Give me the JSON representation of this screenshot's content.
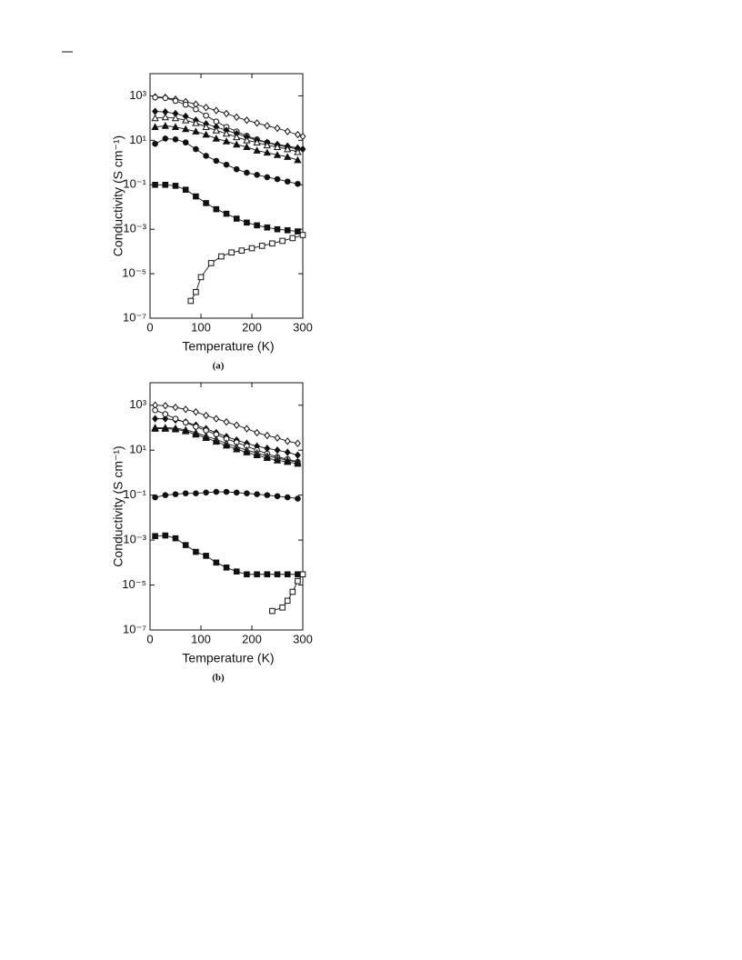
{
  "chart_data": [
    {
      "type": "line",
      "caption": "(a)",
      "xlabel": "Temperature (K)",
      "ylabel": "Conductivity (S cm⁻¹)",
      "log_y": true,
      "xlim": [
        0,
        300
      ],
      "xticks": [
        0,
        100,
        200,
        300
      ],
      "ylim": [
        1e-07,
        10000
      ],
      "yticks": [
        {
          "value": 1000,
          "label": "10³"
        },
        {
          "value": 10,
          "label": "10¹"
        },
        {
          "value": 0.1,
          "label": "10⁻¹"
        },
        {
          "value": 0.001,
          "label": "10⁻³"
        },
        {
          "value": 1e-05,
          "label": "10⁻⁵"
        },
        {
          "value": 1e-07,
          "label": "10⁻⁷"
        }
      ],
      "series": [
        {
          "marker": "diamond",
          "filled": false,
          "color": "#111",
          "x": [
            10,
            30,
            50,
            70,
            90,
            110,
            130,
            150,
            170,
            190,
            210,
            230,
            250,
            270,
            290,
            300
          ],
          "values": [
            900,
            850,
            700,
            550,
            420,
            300,
            220,
            160,
            110,
            80,
            60,
            45,
            35,
            25,
            18,
            15
          ]
        },
        {
          "marker": "circle",
          "filled": false,
          "color": "#111",
          "x": [
            10,
            30,
            50,
            70,
            90,
            110,
            130,
            150,
            170,
            190,
            210,
            230,
            250,
            270,
            290
          ],
          "values": [
            850,
            800,
            600,
            400,
            250,
            130,
            70,
            40,
            25,
            16,
            11,
            8,
            6,
            5,
            4
          ]
        },
        {
          "marker": "diamond",
          "filled": true,
          "color": "#111",
          "x": [
            10,
            30,
            50,
            70,
            90,
            110,
            130,
            150,
            170,
            190,
            210,
            230,
            250,
            270,
            290,
            300
          ],
          "values": [
            200,
            190,
            160,
            120,
            80,
            55,
            40,
            28,
            20,
            14,
            10,
            8,
            6.5,
            5.5,
            4.5,
            4
          ]
        },
        {
          "marker": "triangle",
          "filled": false,
          "color": "#111",
          "x": [
            10,
            30,
            50,
            70,
            90,
            110,
            130,
            150,
            170,
            190,
            210,
            230,
            250,
            270,
            290
          ],
          "values": [
            100,
            110,
            100,
            80,
            60,
            40,
            28,
            20,
            14,
            10,
            8,
            6,
            5,
            4,
            3
          ]
        },
        {
          "marker": "triangle",
          "filled": true,
          "color": "#111",
          "x": [
            10,
            30,
            50,
            70,
            90,
            110,
            130,
            150,
            170,
            190,
            210,
            230,
            250,
            270,
            290
          ],
          "values": [
            40,
            45,
            40,
            32,
            25,
            18,
            12,
            9,
            6.5,
            5,
            3.5,
            2.8,
            2.2,
            1.8,
            1.3
          ]
        },
        {
          "marker": "circle",
          "filled": true,
          "color": "#111",
          "x": [
            10,
            30,
            50,
            70,
            90,
            110,
            130,
            150,
            170,
            190,
            210,
            230,
            250,
            270,
            290
          ],
          "values": [
            7,
            12,
            11,
            8,
            4,
            2,
            1.2,
            0.8,
            0.5,
            0.35,
            0.28,
            0.22,
            0.18,
            0.14,
            0.11
          ]
        },
        {
          "marker": "square",
          "filled": true,
          "color": "#111",
          "x": [
            10,
            30,
            50,
            70,
            90,
            110,
            130,
            150,
            170,
            190,
            210,
            230,
            250,
            270,
            290
          ],
          "values": [
            0.1,
            0.1,
            0.09,
            0.06,
            0.03,
            0.015,
            0.008,
            0.005,
            0.003,
            0.002,
            0.0015,
            0.0012,
            0.001,
            0.0009,
            0.0008
          ]
        },
        {
          "marker": "square",
          "filled": false,
          "color": "#111",
          "x": [
            80,
            90,
            100,
            120,
            140,
            160,
            180,
            200,
            220,
            240,
            260,
            280,
            300
          ],
          "values": [
            6e-07,
            1.5e-06,
            7e-06,
            3e-05,
            6e-05,
            9e-05,
            0.00011,
            0.00014,
            0.00018,
            0.00023,
            0.0003,
            0.0004,
            0.00055
          ]
        }
      ]
    },
    {
      "type": "line",
      "caption": "(b)",
      "xlabel": "Temperature (K)",
      "ylabel": "Conductivity (S cm⁻¹)",
      "log_y": true,
      "xlim": [
        0,
        300
      ],
      "xticks": [
        0,
        100,
        200,
        300
      ],
      "ylim": [
        1e-07,
        10000
      ],
      "yticks": [
        {
          "value": 1000,
          "label": "10³"
        },
        {
          "value": 10,
          "label": "10¹"
        },
        {
          "value": 0.1,
          "label": "10⁻¹"
        },
        {
          "value": 0.001,
          "label": "10⁻³"
        },
        {
          "value": 1e-05,
          "label": "10⁻⁵"
        },
        {
          "value": 1e-07,
          "label": "10⁻⁷"
        }
      ],
      "series": [
        {
          "marker": "diamond",
          "filled": false,
          "color": "#111",
          "x": [
            10,
            30,
            50,
            70,
            90,
            110,
            130,
            150,
            170,
            190,
            210,
            230,
            250,
            270,
            290
          ],
          "values": [
            1000,
            950,
            800,
            650,
            500,
            350,
            250,
            180,
            130,
            90,
            60,
            45,
            35,
            25,
            20
          ]
        },
        {
          "marker": "diamond",
          "filled": true,
          "color": "#111",
          "x": [
            10,
            30,
            50,
            70,
            90,
            110,
            130,
            150,
            170,
            190,
            210,
            230,
            250,
            270,
            290
          ],
          "values": [
            250,
            250,
            220,
            180,
            130,
            90,
            60,
            40,
            28,
            20,
            15,
            12,
            10,
            8,
            6
          ]
        },
        {
          "marker": "circle",
          "filled": false,
          "color": "#111",
          "x": [
            10,
            30,
            50,
            70,
            90,
            110,
            130,
            150,
            170,
            190,
            210,
            230,
            250,
            270,
            290
          ],
          "values": [
            600,
            400,
            250,
            170,
            110,
            75,
            50,
            32,
            22,
            15,
            10,
            7,
            5,
            4,
            3
          ]
        },
        {
          "marker": "triangle",
          "filled": false,
          "color": "#111",
          "x": [
            10,
            30,
            50,
            70,
            90,
            110,
            130,
            150,
            170,
            190,
            210,
            230,
            250,
            270,
            290
          ],
          "values": [
            100,
            100,
            95,
            80,
            60,
            42,
            30,
            20,
            14,
            10,
            7.5,
            5.5,
            4.5,
            3.5,
            3
          ]
        },
        {
          "marker": "triangle",
          "filled": true,
          "color": "#111",
          "x": [
            10,
            30,
            50,
            70,
            90,
            110,
            130,
            150,
            170,
            190,
            210,
            230,
            250,
            270,
            290
          ],
          "values": [
            90,
            90,
            85,
            70,
            50,
            35,
            24,
            16,
            11,
            8,
            6,
            4.5,
            3.5,
            3,
            2.5
          ]
        },
        {
          "marker": "circle",
          "filled": true,
          "color": "#111",
          "x": [
            10,
            30,
            50,
            70,
            90,
            110,
            130,
            150,
            170,
            190,
            210,
            230,
            250,
            270,
            290
          ],
          "values": [
            0.08,
            0.1,
            0.11,
            0.12,
            0.12,
            0.13,
            0.14,
            0.14,
            0.13,
            0.12,
            0.11,
            0.1,
            0.09,
            0.08,
            0.07
          ]
        },
        {
          "marker": "square",
          "filled": true,
          "color": "#111",
          "x": [
            10,
            30,
            50,
            70,
            90,
            110,
            130,
            150,
            170,
            190,
            210,
            230,
            250,
            270,
            290
          ],
          "values": [
            0.0015,
            0.0016,
            0.0012,
            0.0006,
            0.0003,
            0.0002,
            0.0001,
            6e-05,
            4e-05,
            3e-05,
            3e-05,
            3e-05,
            3e-05,
            3e-05,
            3e-05
          ]
        },
        {
          "marker": "square",
          "filled": false,
          "color": "#111",
          "x": [
            240,
            260,
            270,
            280,
            290,
            300
          ],
          "values": [
            7e-07,
            1e-06,
            2e-06,
            5e-06,
            1.5e-05,
            3e-05
          ]
        }
      ]
    }
  ]
}
